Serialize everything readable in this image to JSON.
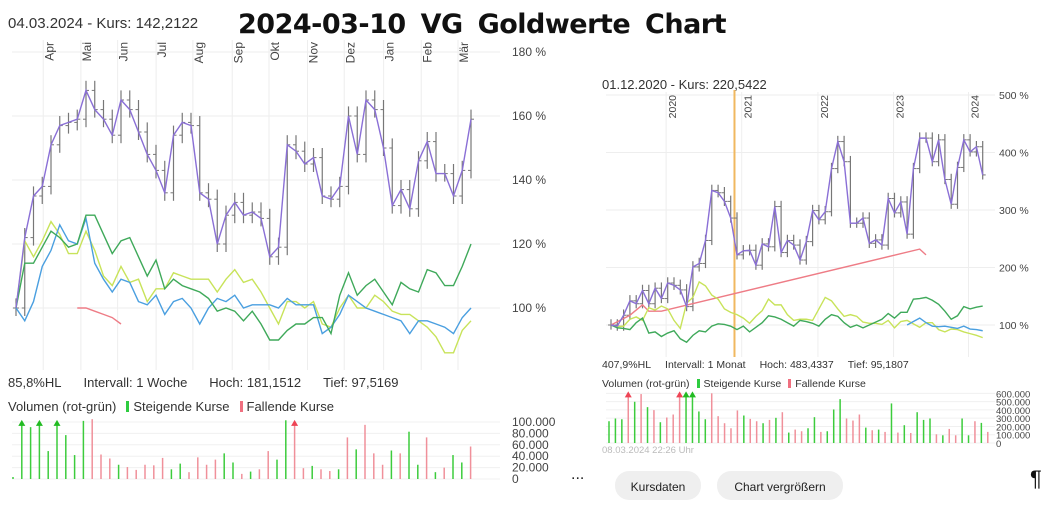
{
  "title": "2024-03-10   VG  Goldwerte  Chart",
  "colors": {
    "price": "#8a6fd6",
    "green_dark": "#3fa95a",
    "lime": "#c8e35a",
    "blue": "#4a9fe0",
    "red": "#ee7c86",
    "ohlc": "#777777",
    "cursor": "#f0b860",
    "vol_up": "#3ccc3c",
    "vol_down": "#f0909a"
  },
  "chart_data": [
    {
      "type": "line",
      "header": "04.03.2024  -  Kurs: 142,2122",
      "interval_note": "weekly points, x = week index",
      "ylim": [
        81,
        180
      ],
      "y_ticks": [
        "180 %",
        "160 %",
        "140 %",
        "120 %",
        "100 %"
      ],
      "y_tick_values": [
        180,
        160,
        140,
        120,
        100
      ],
      "x_ticks": [
        {
          "label": "Apr",
          "at": 3.8
        },
        {
          "label": "Mai",
          "at": 8.1
        },
        {
          "label": "Jun",
          "at": 12.3
        },
        {
          "label": "Jul",
          "at": 16.7
        },
        {
          "label": "Aug",
          "at": 20.9
        },
        {
          "label": "Sep",
          "at": 25.4
        },
        {
          "label": "Okt",
          "at": 29.6
        },
        {
          "label": "Nov",
          "at": 34
        },
        {
          "label": "Dez",
          "at": 38.2
        },
        {
          "label": "Jan",
          "at": 42.7
        },
        {
          "label": "Feb",
          "at": 47
        },
        {
          "label": "Mär",
          "at": 51.2
        }
      ],
      "info": {
        "hl": "85,8%HL",
        "interval": "Intervall: 1 Woche",
        "high": "Hoch: 181,1512",
        "low": "Tief: 97,5169"
      },
      "series": [
        {
          "key": "price",
          "values": [
            100,
            122,
            135,
            138,
            151,
            157,
            158,
            159,
            168,
            162,
            159,
            154,
            165,
            162,
            155,
            148,
            143,
            136,
            154,
            158,
            157,
            136,
            134,
            120,
            129,
            133,
            129,
            130,
            128,
            116,
            119,
            151,
            149,
            145,
            147,
            135,
            134,
            138,
            160,
            148,
            165,
            162,
            150,
            132,
            137,
            131,
            146,
            152,
            142,
            142,
            135,
            143,
            159
          ]
        },
        {
          "key": "green_dark",
          "values": [
            100,
            114,
            114,
            119,
            124,
            122,
            119,
            120,
            129,
            129,
            123,
            117,
            121,
            122,
            116,
            110,
            115,
            106,
            109,
            107,
            106,
            105,
            103,
            99,
            100,
            99,
            96,
            99,
            95,
            90,
            90,
            93,
            95,
            95,
            97,
            97,
            92,
            104,
            111,
            104,
            107,
            109,
            105,
            101,
            108,
            106,
            105,
            112,
            111,
            107,
            107,
            113,
            120
          ]
        },
        {
          "key": "lime",
          "values": [
            100,
            121,
            116,
            121,
            127,
            123,
            117,
            117,
            124,
            118,
            110,
            107,
            113,
            108,
            109,
            102,
            106,
            106,
            111,
            110,
            109,
            109,
            109,
            105,
            109,
            112,
            108,
            109,
            105,
            100,
            95,
            102,
            102,
            100,
            102,
            95,
            94,
            100,
            104,
            100,
            100,
            104,
            102,
            99,
            98,
            98,
            96,
            94,
            91,
            86,
            86,
            93,
            96
          ]
        },
        {
          "key": "blue",
          "values": [
            100,
            96,
            102,
            113,
            118,
            126,
            121,
            120,
            128,
            114,
            109,
            105,
            109,
            108,
            102,
            101,
            104,
            98,
            102,
            103,
            100,
            95,
            100,
            103,
            102,
            104,
            100,
            101,
            101,
            101,
            100,
            103,
            101,
            101,
            101,
            92,
            94,
            98,
            104,
            102,
            100,
            99,
            98,
            97,
            96,
            92,
            96,
            96,
            95,
            94,
            92,
            97,
            100
          ]
        },
        {
          "key": "red",
          "start": 7,
          "values": [
            100,
            100,
            99,
            98,
            97,
            95
          ]
        }
      ],
      "volume": {
        "legend": {
          "title": "Volumen (rot-grün)",
          "up": "Steigende Kurse",
          "down": "Fallende Kurse"
        },
        "y_ticks": [
          "100.000",
          "80.000",
          "60.000",
          "40.000",
          "20.000",
          "0"
        ],
        "y_tick_values": [
          100000,
          80000,
          60000,
          40000,
          20000,
          0
        ],
        "max": 100000,
        "values_thousands": [
          3.5,
          110,
          91,
          110,
          49,
          110,
          77,
          42,
          102,
          107,
          43,
          36,
          25,
          21,
          16,
          25,
          24,
          37,
          17,
          27,
          12,
          38,
          25,
          34,
          45,
          29,
          9,
          13,
          17,
          49,
          34,
          103,
          110,
          19,
          23,
          17,
          14,
          17,
          73,
          52,
          95,
          45,
          25,
          50,
          45,
          83,
          25,
          73,
          12,
          20,
          42,
          29,
          57
        ],
        "direction": "gggggggggrrrgrrrrrggrrrrggrgrrggrrgrrgrgrrrgrggrgrgg",
        "clipped_above_max": [
          1,
          3,
          5,
          32
        ]
      }
    },
    {
      "type": "line",
      "header": "01.12.2020  -  Kurs: 220,5422",
      "interval_note": "monthly points, x = month index",
      "ylim": [
        45,
        500
      ],
      "y_ticks": [
        "500 %",
        "400 %",
        "300 %",
        "200 %",
        "100 %"
      ],
      "y_tick_values": [
        500,
        400,
        300,
        200,
        100
      ],
      "x_ticks": [
        {
          "label": "2020",
          "at": 9.7
        },
        {
          "label": "2021",
          "at": 21.7
        },
        {
          "label": "2022",
          "at": 33.8
        },
        {
          "label": "2023",
          "at": 45.8
        },
        {
          "label": "2024",
          "at": 57.7
        }
      ],
      "cursor_at": 19.6,
      "info": {
        "hl": "407,9%HL",
        "interval": "Intervall: 1 Monat",
        "high": "Hoch: 483,4337",
        "low": "Tief: 95,1807"
      },
      "series": [
        {
          "key": "price",
          "values": [
            100,
            98,
            117,
            142,
            137,
            160,
            137,
            164,
            146,
            173,
            169,
            161,
            132,
            201,
            207,
            247,
            334,
            330,
            315,
            286,
            222,
            229,
            230,
            204,
            241,
            236,
            306,
            226,
            247,
            239,
            213,
            245,
            299,
            283,
            297,
            372,
            419,
            384,
            277,
            277,
            286,
            242,
            248,
            239,
            320,
            295,
            314,
            258,
            372,
            425,
            425,
            384,
            422,
            353,
            310,
            374,
            422,
            401,
            410,
            361
          ]
        },
        {
          "key": "green_dark",
          "values": [
            100,
            95,
            94,
            92,
            104,
            112,
            86,
            88,
            80,
            86,
            90,
            76,
            70,
            82,
            90,
            88,
            98,
            102,
            101,
            98,
            92,
            98,
            88,
            96,
            104,
            116,
            114,
            110,
            104,
            98,
            108,
            106,
            103,
            98,
            110,
            118,
            115,
            104,
            96,
            100,
            95,
            100,
            105,
            110,
            120,
            112,
            122,
            122,
            145,
            146,
            148,
            143,
            136,
            124,
            110,
            116,
            132,
            128,
            131,
            133
          ]
        },
        {
          "key": "lime",
          "values": [
            100,
            97,
            98,
            110,
            114,
            108,
            130,
            126,
            133,
            128,
            108,
            94,
            138,
            148,
            175,
            168,
            152,
            145,
            128,
            122,
            118,
            112,
            103,
            115,
            125,
            145,
            135,
            135,
            118,
            108,
            110,
            110,
            108,
            128,
            148,
            142,
            128,
            115,
            118,
            115,
            105,
            103,
            103,
            101,
            108,
            95,
            106,
            108,
            102,
            96,
            104,
            104,
            92,
            88,
            93,
            92,
            88,
            85,
            82,
            78
          ]
        },
        {
          "key": "blue",
          "start": 47,
          "values": [
            100,
            106,
            112,
            104,
            98,
            97,
            98,
            96,
            94,
            98,
            93,
            92,
            90
          ]
        },
        {
          "key": "red",
          "points": [
            [
              0,
              100
            ],
            [
              3,
              117
            ],
            [
              5,
              135
            ],
            [
              6,
              124
            ],
            [
              8,
              124
            ],
            [
              49,
              232
            ],
            [
              50,
              222
            ]
          ]
        }
      ],
      "volume": {
        "legend": {
          "title": "Volumen (rot-grün)",
          "up": "Steigende Kurse",
          "down": "Fallende Kurse"
        },
        "y_ticks": [
          "600.000",
          "500.000",
          "400.000",
          "300.000",
          "200.000",
          "100.000",
          "0"
        ],
        "y_tick_values": [
          600000,
          500000,
          400000,
          300000,
          200000,
          100000,
          0
        ],
        "max": 600000,
        "values_thousands": [
          263,
          296,
          287,
          640,
          498,
          591,
          433,
          397,
          251,
          308,
          344,
          640,
          640,
          640,
          381,
          287,
          600,
          324,
          239,
          178,
          393,
          332,
          291,
          263,
          239,
          279,
          304,
          372,
          126,
          162,
          142,
          178,
          312,
          134,
          142,
          405,
          530,
          296,
          271,
          344,
          186,
          154,
          162,
          134,
          478,
          126,
          215,
          121,
          372,
          279,
          296,
          105,
          93,
          170,
          93,
          296,
          93,
          263,
          243,
          134
        ],
        "direction": "gggrgrgrgrrrggggrrrrrgrrgrgrgrrggrgggrrrgrgrgrgrgggrgrrggrgr",
        "clipped_above_max": [
          3,
          11,
          12,
          13
        ],
        "timestamp": "08.03.2024 22:26 Uhr"
      }
    }
  ],
  "buttons": {
    "kursdaten": "Kursdaten",
    "vergroessern": "Chart vergrößern"
  },
  "ellipsis": "...",
  "pilcrow": "¶"
}
